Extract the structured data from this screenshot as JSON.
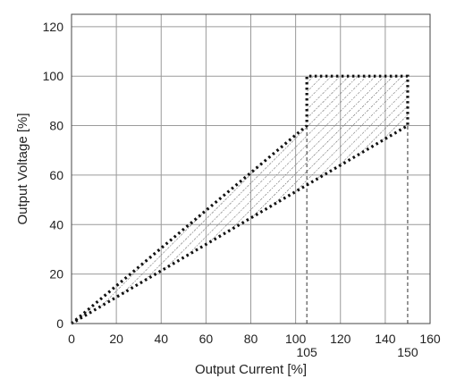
{
  "chart_data": {
    "type": "area",
    "xlabel": "Output Current [%]",
    "ylabel": "Output Voltage [%]",
    "xlim": [
      0,
      160
    ],
    "ylim": [
      0,
      125
    ],
    "x_ticks": [
      0,
      20,
      40,
      60,
      80,
      100,
      120,
      140,
      160
    ],
    "y_ticks": [
      0,
      20,
      40,
      60,
      80,
      100,
      120
    ],
    "grid": true,
    "annotations": [
      {
        "label": "105",
        "x": 105
      },
      {
        "label": "150",
        "x": 150
      }
    ],
    "operating_region": {
      "boundary": [
        {
          "x": 0,
          "y": 0
        },
        {
          "x": 105,
          "y": 80
        },
        {
          "x": 105,
          "y": 100
        },
        {
          "x": 150,
          "y": 100
        },
        {
          "x": 150,
          "y": 80
        },
        {
          "x": 0,
          "y": 0
        }
      ],
      "style": "dotted outline with diagonal hatch fill"
    },
    "reference_lines": [
      {
        "x": 105,
        "from_y": 0,
        "to_y": 80,
        "style": "dashed"
      },
      {
        "x": 150,
        "from_y": 0,
        "to_y": 80,
        "style": "dashed"
      }
    ]
  }
}
